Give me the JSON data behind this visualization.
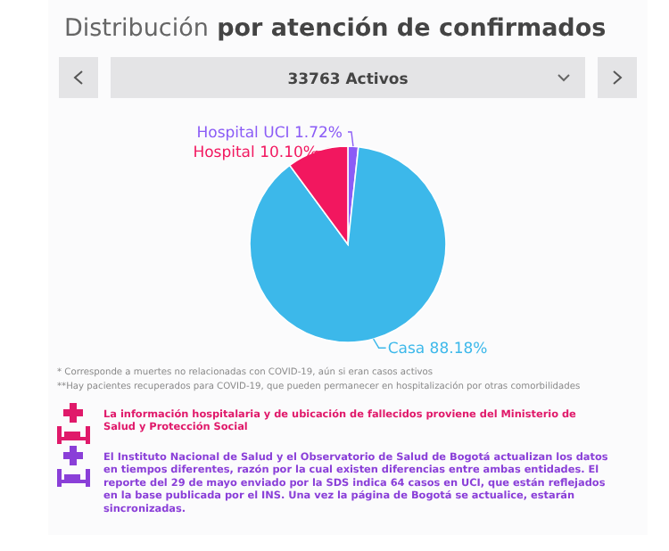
{
  "chart_data": {
    "type": "pie",
    "title": "Distribución por atención de confirmados",
    "subtitle": "33763 Activos",
    "categories": [
      "Hospital UCI",
      "Casa",
      "Hospital"
    ],
    "values": [
      1.72,
      88.18,
      10.1
    ],
    "value_labels": [
      "1.72%",
      "88.18%",
      "10.10%"
    ],
    "colors": [
      "#8b5cf6",
      "#3cb8ea",
      "#f2175f"
    ],
    "annotations": [
      "* Corresponde a muertes no relacionadas con COVID-19, aún si eran casos activos",
      "**Hay pacientes recuperados para COVID-19, que pueden permanecer en hospitalización por otras comorbilidades",
      "La información hospitalaria y de ubicación de fallecidos proviene del Ministerio de Salud y Protección Social",
      "El Instituto Nacional de Salud y el Observatorio de Salud de Bogotá actualizan los datos en tiempos diferentes, razón por la cual existen diferencias entre ambas entidades. El reporte del 29 de mayo enviado por la SDS indica 64 casos en UCI, que están reflejados en la base publicada por el INS. Una vez la página de Bogotá se actualice, estarán sincronizadas."
    ]
  }
}
